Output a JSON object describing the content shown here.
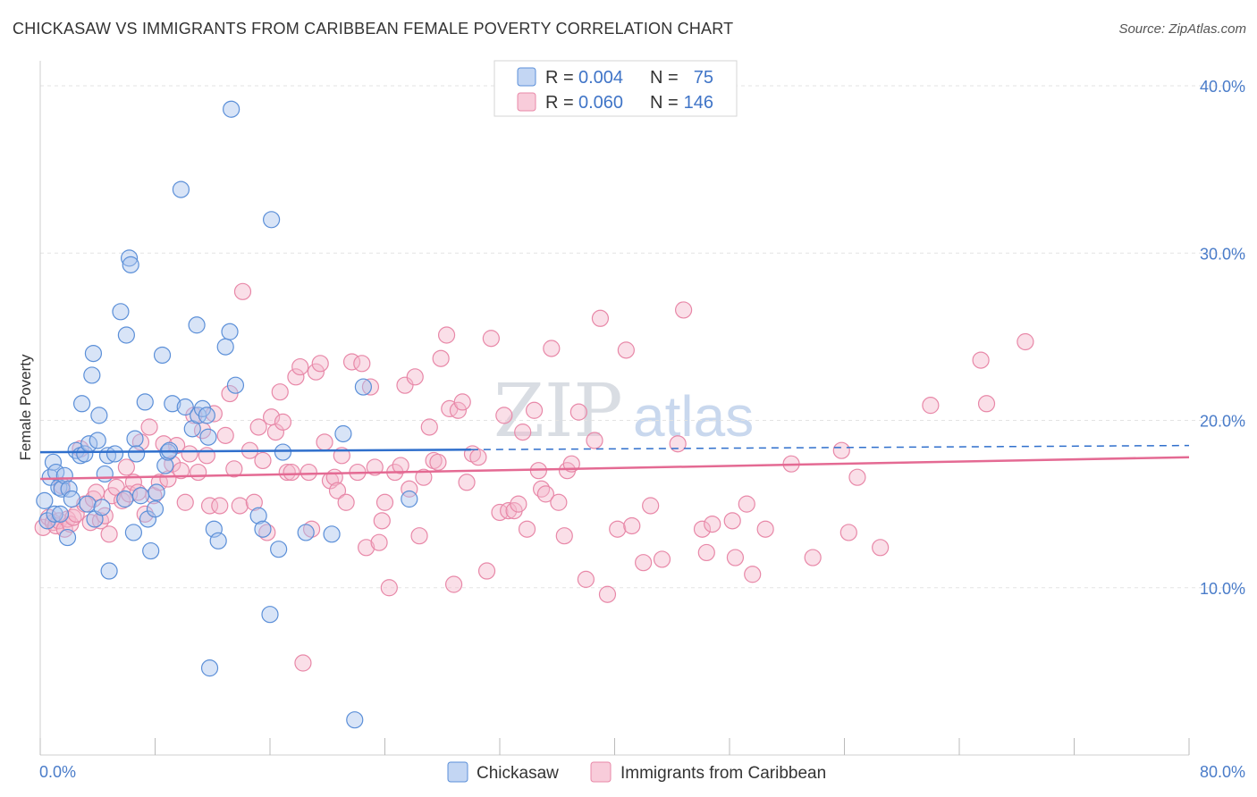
{
  "header": {
    "title": "CHICKASAW VS IMMIGRANTS FROM CARIBBEAN FEMALE POVERTY CORRELATION CHART",
    "source": "Source: ZipAtlas.com"
  },
  "watermark": {
    "zip": "ZIP",
    "atlas": "atlas"
  },
  "legend": {
    "rows": [
      {
        "r_label": "R = ",
        "r_value": "0.004",
        "n_label": "N = ",
        "n_value": "75",
        "color": "#a9c4ee"
      },
      {
        "r_label": "R = ",
        "r_value": "0.060",
        "n_label": "N = ",
        "n_value": "146",
        "color": "#f5b7cb"
      }
    ]
  },
  "colors": {
    "chickasaw_fill": "#a9c4ee",
    "chickasaw_stroke": "#5b8fd8",
    "chickasaw_line": "#2f6fcc",
    "caribbean_fill": "#f5b7cb",
    "caribbean_stroke": "#e888a8",
    "caribbean_line": "#e46a93",
    "grid": "#e3e3e3",
    "tick_text": "#4a7cc9"
  },
  "chart_data": {
    "type": "scatter",
    "title": "CHICKASAW VS IMMIGRANTS FROM CARIBBEAN FEMALE POVERTY CORRELATION CHART",
    "xlabel": "",
    "ylabel": "Female Poverty",
    "xlim": [
      0,
      80
    ],
    "ylim": [
      0,
      40
    ],
    "x_tick_labels": [
      "0.0%",
      "80.0%"
    ],
    "y_ticks": [
      10,
      20,
      30,
      40
    ],
    "y_tick_labels": [
      "10.0%",
      "20.0%",
      "30.0%",
      "40.0%"
    ],
    "grid": true,
    "legend_placement": "top-center",
    "series": [
      {
        "name": "Chickasaw",
        "r": 0.004,
        "n": 75,
        "trend": {
          "x0": 0,
          "y0": 18.1,
          "x1": 80,
          "y1": 18.5,
          "solid_until": 30
        },
        "points": [
          [
            0.3,
            15.2
          ],
          [
            0.5,
            14.0
          ],
          [
            0.7,
            16.6
          ],
          [
            0.9,
            17.5
          ],
          [
            1.0,
            14.4
          ],
          [
            1.1,
            16.9
          ],
          [
            1.3,
            16.0
          ],
          [
            1.4,
            14.4
          ],
          [
            1.5,
            15.9
          ],
          [
            1.7,
            16.7
          ],
          [
            1.9,
            13.0
          ],
          [
            2.0,
            15.9
          ],
          [
            2.2,
            15.3
          ],
          [
            2.5,
            18.2
          ],
          [
            2.8,
            17.9
          ],
          [
            2.9,
            21.0
          ],
          [
            3.1,
            18.0
          ],
          [
            3.3,
            15.0
          ],
          [
            3.4,
            18.6
          ],
          [
            3.6,
            22.7
          ],
          [
            3.7,
            24.0
          ],
          [
            3.8,
            14.1
          ],
          [
            4.0,
            18.8
          ],
          [
            4.1,
            20.3
          ],
          [
            4.3,
            14.8
          ],
          [
            4.5,
            16.8
          ],
          [
            4.7,
            17.9
          ],
          [
            4.8,
            11.0
          ],
          [
            5.2,
            18.0
          ],
          [
            5.6,
            26.5
          ],
          [
            5.9,
            15.3
          ],
          [
            6.0,
            25.1
          ],
          [
            6.2,
            29.7
          ],
          [
            6.3,
            29.3
          ],
          [
            6.5,
            13.3
          ],
          [
            6.6,
            18.9
          ],
          [
            7.0,
            15.5
          ],
          [
            7.3,
            21.1
          ],
          [
            7.5,
            14.1
          ],
          [
            7.7,
            12.2
          ],
          [
            8.0,
            14.7
          ],
          [
            8.1,
            15.7
          ],
          [
            8.5,
            23.9
          ],
          [
            8.7,
            17.3
          ],
          [
            8.9,
            18.1
          ],
          [
            9.2,
            21.0
          ],
          [
            9.8,
            33.8
          ],
          [
            10.1,
            20.8
          ],
          [
            10.6,
            19.5
          ],
          [
            10.9,
            25.7
          ],
          [
            11.0,
            20.3
          ],
          [
            11.3,
            20.7
          ],
          [
            11.6,
            20.3
          ],
          [
            11.7,
            19.0
          ],
          [
            11.8,
            5.2
          ],
          [
            12.1,
            13.5
          ],
          [
            12.4,
            12.8
          ],
          [
            12.9,
            24.4
          ],
          [
            13.2,
            25.3
          ],
          [
            13.3,
            38.6
          ],
          [
            13.6,
            22.1
          ],
          [
            15.2,
            14.3
          ],
          [
            15.5,
            13.5
          ],
          [
            16.0,
            8.4
          ],
          [
            16.1,
            32.0
          ],
          [
            16.6,
            12.3
          ],
          [
            16.9,
            18.1
          ],
          [
            18.5,
            13.3
          ],
          [
            20.3,
            13.2
          ],
          [
            21.1,
            19.2
          ],
          [
            21.9,
            2.1
          ],
          [
            22.5,
            22.0
          ],
          [
            25.7,
            15.3
          ],
          [
            6.7,
            18.0
          ],
          [
            9.0,
            18.2
          ]
        ]
      },
      {
        "name": "Immigrants from Caribbean",
        "r": 0.06,
        "n": 146,
        "trend": {
          "x0": 0,
          "y0": 16.5,
          "x1": 80,
          "y1": 17.8,
          "solid_until": 80
        },
        "points": [
          [
            0.2,
            13.6
          ],
          [
            0.6,
            14.2
          ],
          [
            0.9,
            13.9
          ],
          [
            1.1,
            13.7
          ],
          [
            1.3,
            14.0
          ],
          [
            1.5,
            16.1
          ],
          [
            1.7,
            13.5
          ],
          [
            1.9,
            14.1
          ],
          [
            2.1,
            13.8
          ],
          [
            2.3,
            14.2
          ],
          [
            2.5,
            14.4
          ],
          [
            2.8,
            18.3
          ],
          [
            3.1,
            15.0
          ],
          [
            3.5,
            13.9
          ],
          [
            3.7,
            15.3
          ],
          [
            3.9,
            15.7
          ],
          [
            4.2,
            14.0
          ],
          [
            4.5,
            14.3
          ],
          [
            4.8,
            13.2
          ],
          [
            5.0,
            15.5
          ],
          [
            5.3,
            16.0
          ],
          [
            5.7,
            15.2
          ],
          [
            6.0,
            17.2
          ],
          [
            6.2,
            15.6
          ],
          [
            6.5,
            16.3
          ],
          [
            6.8,
            15.7
          ],
          [
            7.0,
            18.7
          ],
          [
            7.3,
            14.4
          ],
          [
            7.6,
            19.6
          ],
          [
            7.9,
            15.5
          ],
          [
            8.3,
            16.3
          ],
          [
            8.6,
            18.6
          ],
          [
            8.9,
            16.5
          ],
          [
            9.2,
            17.4
          ],
          [
            9.5,
            18.5
          ],
          [
            9.8,
            17.0
          ],
          [
            10.1,
            15.1
          ],
          [
            10.4,
            18.0
          ],
          [
            10.7,
            20.3
          ],
          [
            11.0,
            16.9
          ],
          [
            11.3,
            19.4
          ],
          [
            11.6,
            17.9
          ],
          [
            11.8,
            14.9
          ],
          [
            12.1,
            20.4
          ],
          [
            12.5,
            14.9
          ],
          [
            12.9,
            19.1
          ],
          [
            13.2,
            21.6
          ],
          [
            13.5,
            17.1
          ],
          [
            13.9,
            14.9
          ],
          [
            14.1,
            27.7
          ],
          [
            14.6,
            18.2
          ],
          [
            14.9,
            15.1
          ],
          [
            15.2,
            19.6
          ],
          [
            15.5,
            17.6
          ],
          [
            15.8,
            13.3
          ],
          [
            16.1,
            20.2
          ],
          [
            16.4,
            19.3
          ],
          [
            16.7,
            21.7
          ],
          [
            16.9,
            19.9
          ],
          [
            17.2,
            16.9
          ],
          [
            17.5,
            16.9
          ],
          [
            17.8,
            22.6
          ],
          [
            18.1,
            23.2
          ],
          [
            18.3,
            5.5
          ],
          [
            18.7,
            16.9
          ],
          [
            18.9,
            13.5
          ],
          [
            19.2,
            22.9
          ],
          [
            19.5,
            23.4
          ],
          [
            19.8,
            18.7
          ],
          [
            20.2,
            16.4
          ],
          [
            20.5,
            16.6
          ],
          [
            20.7,
            15.8
          ],
          [
            21.0,
            17.9
          ],
          [
            21.3,
            15.1
          ],
          [
            21.7,
            23.5
          ],
          [
            22.1,
            16.9
          ],
          [
            22.4,
            23.4
          ],
          [
            22.7,
            12.4
          ],
          [
            23.0,
            22.0
          ],
          [
            23.3,
            17.2
          ],
          [
            23.6,
            12.7
          ],
          [
            23.8,
            14.0
          ],
          [
            24.0,
            15.1
          ],
          [
            24.3,
            10.0
          ],
          [
            24.7,
            16.9
          ],
          [
            25.1,
            17.3
          ],
          [
            25.4,
            22.1
          ],
          [
            25.7,
            15.9
          ],
          [
            26.1,
            22.6
          ],
          [
            26.4,
            13.1
          ],
          [
            26.7,
            16.6
          ],
          [
            27.1,
            19.6
          ],
          [
            27.4,
            17.6
          ],
          [
            27.7,
            17.5
          ],
          [
            27.9,
            23.7
          ],
          [
            28.3,
            25.1
          ],
          [
            28.5,
            20.7
          ],
          [
            28.8,
            10.2
          ],
          [
            29.1,
            20.6
          ],
          [
            29.4,
            21.1
          ],
          [
            29.7,
            16.3
          ],
          [
            30.1,
            18.0
          ],
          [
            30.5,
            17.8
          ],
          [
            31.1,
            11.0
          ],
          [
            31.4,
            24.9
          ],
          [
            32.0,
            14.5
          ],
          [
            32.3,
            20.3
          ],
          [
            32.6,
            14.6
          ],
          [
            33.0,
            14.6
          ],
          [
            33.3,
            15.0
          ],
          [
            33.6,
            19.3
          ],
          [
            33.9,
            13.5
          ],
          [
            34.4,
            20.6
          ],
          [
            34.7,
            17.0
          ],
          [
            34.9,
            15.9
          ],
          [
            35.2,
            15.6
          ],
          [
            35.6,
            24.3
          ],
          [
            36.1,
            15.1
          ],
          [
            36.5,
            13.1
          ],
          [
            36.7,
            17.0
          ],
          [
            37.0,
            17.4
          ],
          [
            37.5,
            20.5
          ],
          [
            38.0,
            10.5
          ],
          [
            38.6,
            18.8
          ],
          [
            39.0,
            26.1
          ],
          [
            39.5,
            9.6
          ],
          [
            40.2,
            13.5
          ],
          [
            40.8,
            24.2
          ],
          [
            41.2,
            13.7
          ],
          [
            42.0,
            11.5
          ],
          [
            42.5,
            14.9
          ],
          [
            43.3,
            11.7
          ],
          [
            44.4,
            18.6
          ],
          [
            44.8,
            26.6
          ],
          [
            46.1,
            13.5
          ],
          [
            46.4,
            12.1
          ],
          [
            46.8,
            13.8
          ],
          [
            48.2,
            14.0
          ],
          [
            48.4,
            11.8
          ],
          [
            49.2,
            15.0
          ],
          [
            49.6,
            10.8
          ],
          [
            50.5,
            13.5
          ],
          [
            52.3,
            17.4
          ],
          [
            53.8,
            11.8
          ],
          [
            55.8,
            18.2
          ],
          [
            56.3,
            13.3
          ],
          [
            56.9,
            16.6
          ],
          [
            58.5,
            12.4
          ],
          [
            62.0,
            20.9
          ],
          [
            65.5,
            23.6
          ],
          [
            65.9,
            21.0
          ],
          [
            68.6,
            24.7
          ]
        ]
      }
    ]
  },
  "bottom_legend": {
    "items": [
      {
        "label": "Chickasaw"
      },
      {
        "label": "Immigrants from Caribbean"
      }
    ]
  }
}
